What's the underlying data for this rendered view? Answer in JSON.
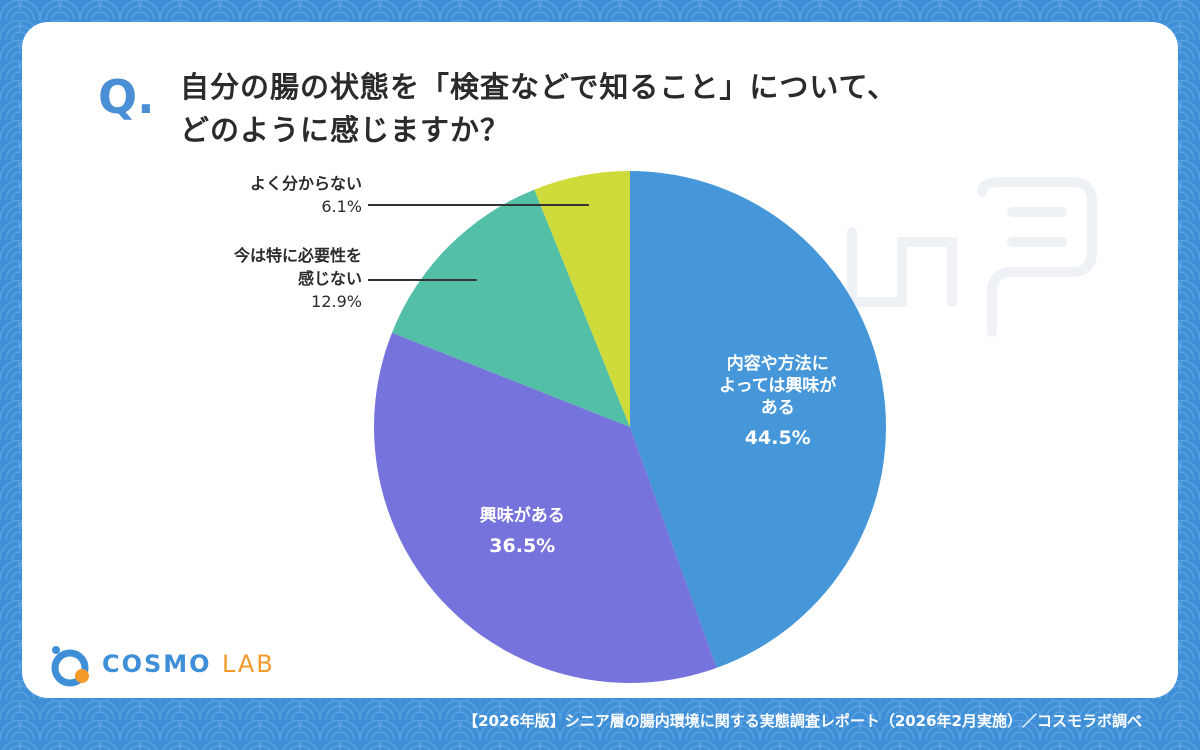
{
  "question": {
    "mark": "Q",
    "line1": "自分の腸の状態を「検査などで知ること」について、",
    "line2": "どのように感じますか？"
  },
  "chart_data": {
    "type": "pie",
    "slices": [
      {
        "label": "内容や方法によっては興味がある",
        "label_lines": [
          "内容や方法に",
          "よっては興味が",
          "ある"
        ],
        "value": 44.5,
        "pct_text": "44.5%",
        "color": "#4597d9"
      },
      {
        "label": "興味がある",
        "label_lines": [
          "興味がある"
        ],
        "value": 36.5,
        "pct_text": "36.5%",
        "color": "#7773dc"
      },
      {
        "label": "今は特に必要性を感じない",
        "label_lines": [
          "今は特に必要性を",
          "感じない"
        ],
        "value": 12.9,
        "pct_text": "12.9%",
        "color": "#52bfa6"
      },
      {
        "label": "よく分からない",
        "label_lines": [
          "よく分からない"
        ],
        "value": 6.1,
        "pct_text": "6.1%",
        "color": "#cfdb3a"
      }
    ]
  },
  "logo": {
    "brand": "COSMO",
    "suffix": "LAB"
  },
  "footer": "【2026年版】シニア層の腸内環境に関する実態調査レポート（2026年2月実施）／コスモラボ調べ",
  "colors": {
    "background": "#3f8fd8",
    "card": "#ffffff",
    "accent": "#4a8fd6"
  }
}
